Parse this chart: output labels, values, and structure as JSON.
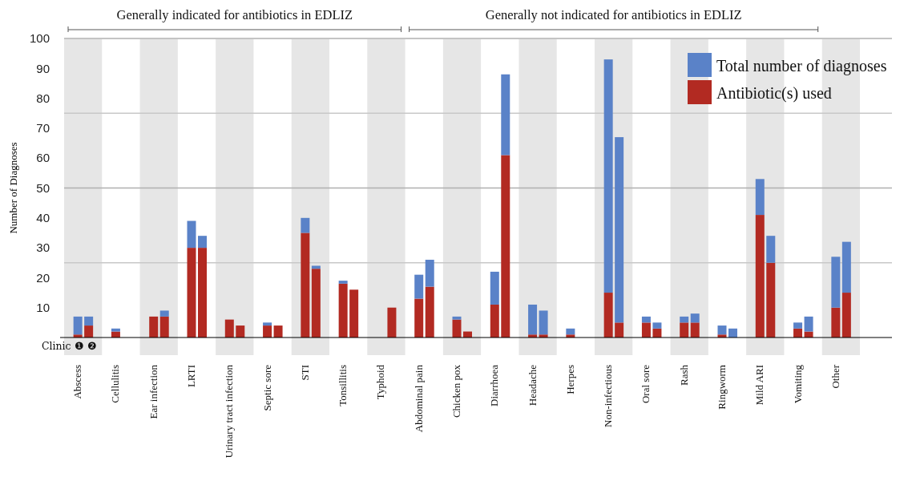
{
  "chart_data": {
    "type": "bar",
    "stacked": true,
    "ylabel": "Number of Diagnoses",
    "categories": [
      "Abscess",
      null,
      "Cellulitis",
      null,
      "Ear infection",
      null,
      "LRTI",
      null,
      "Urinary tract infection",
      null,
      "Septic sore",
      null,
      "STI",
      null,
      "Tonsillitis",
      null,
      "Typhoid",
      null,
      "Abdominal pain",
      null,
      "Chicken pox",
      null,
      "Diarrhoea",
      null,
      "Headache",
      null,
      "Herpes",
      null,
      "Non-infectious",
      null,
      "Oral sore",
      null,
      "Rash",
      null,
      "Ringworm",
      null,
      "Mild ARI",
      null,
      "Vomiting",
      null,
      "Other",
      null
    ],
    "series": [
      {
        "name": "Antibiotic(s) used",
        "color": "#b22a22",
        "values": [
          1,
          4,
          2,
          null,
          7,
          7,
          30,
          30,
          6,
          4,
          4,
          4,
          35,
          23,
          18,
          16,
          null,
          10,
          13,
          17,
          6,
          2,
          11,
          61,
          1,
          1,
          1,
          null,
          15,
          5,
          5,
          3,
          5,
          5,
          1,
          null,
          41,
          25,
          3,
          2,
          10,
          15
        ]
      },
      {
        "name": "Total number of diagnoses",
        "color": "#5a82c8",
        "values": [
          6,
          3,
          1,
          null,
          null,
          2,
          9,
          4,
          null,
          null,
          1,
          null,
          5,
          1,
          1,
          null,
          null,
          null,
          8,
          9,
          1,
          null,
          11,
          27,
          10,
          8,
          2,
          null,
          78,
          62,
          2,
          2,
          2,
          3,
          3,
          3,
          12,
          9,
          2,
          5,
          17,
          17
        ]
      }
    ],
    "ylim": [
      0,
      100
    ],
    "yticks": [
      10,
      20,
      30,
      40,
      50,
      60,
      70,
      80,
      90,
      100
    ],
    "ref_lines": [
      {
        "axis": "y",
        "value": 25,
        "color": "#c8c8c8"
      },
      {
        "axis": "y",
        "value": 50,
        "color": "#b0b0b0"
      },
      {
        "axis": "y",
        "value": 75,
        "color": "#c8c8c8"
      }
    ],
    "legend": "top right",
    "annotations": [
      "Generally indicated for antibiotics in EDLIZ",
      "Generally not indicated for antibiotics in EDLIZ",
      "Clinic ❶ ❷"
    ]
  }
}
